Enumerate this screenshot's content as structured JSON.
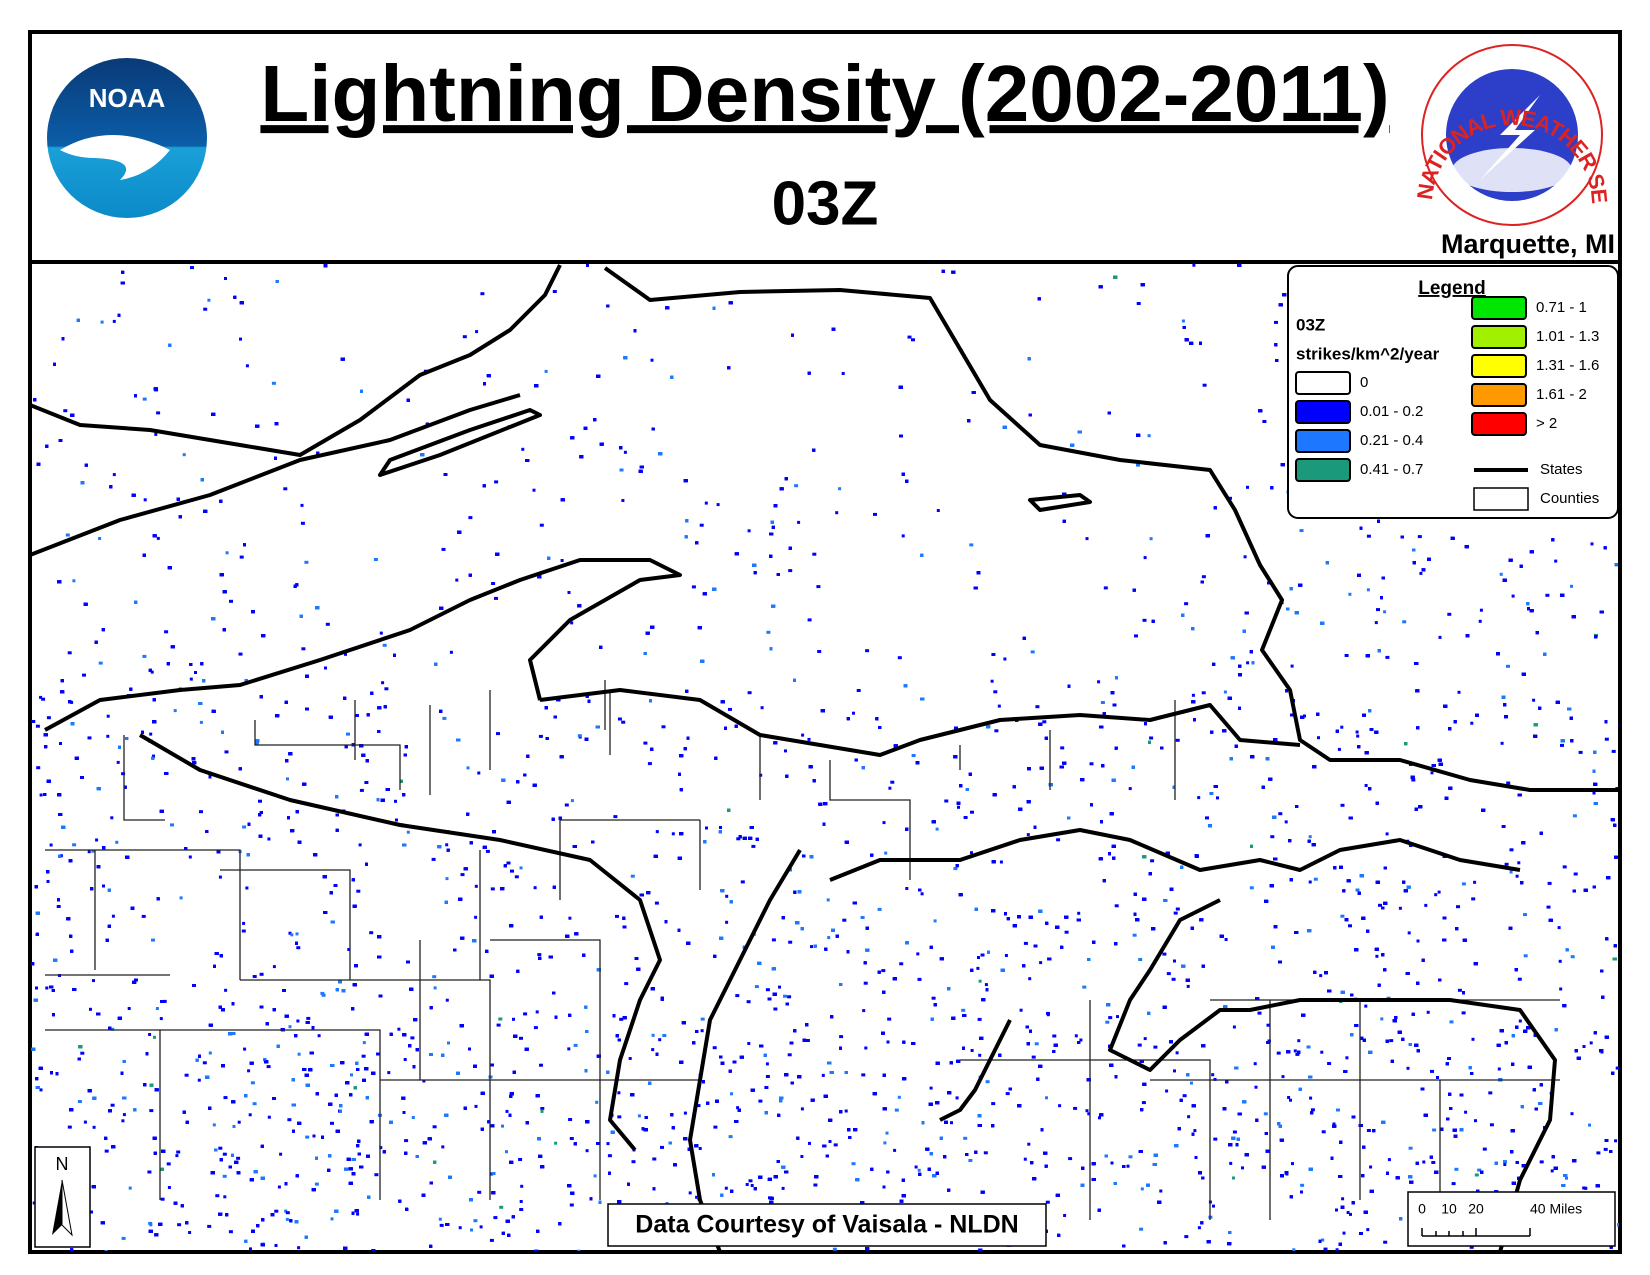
{
  "header": {
    "title": "Lightning Density (2002-2011)",
    "subtitle": "03Z",
    "office": "Marquette, MI"
  },
  "logos": {
    "noaa": "NOAA",
    "nws": "NATIONAL WEATHER SERVICE"
  },
  "legend": {
    "title": "Legend",
    "hour": "03Z",
    "units": "strikes/km^2/year",
    "classes": [
      {
        "label": "0",
        "color": "#ffffff"
      },
      {
        "label": "0.01 - 0.2",
        "color": "#0000ff"
      },
      {
        "label": "0.21 - 0.4",
        "color": "#1e78ff"
      },
      {
        "label": "0.41 - 0.7",
        "color": "#1a9a7a"
      },
      {
        "label": "0.71 - 1",
        "color": "#00e600"
      },
      {
        "label": "1.01 - 1.3",
        "color": "#a0f000"
      },
      {
        "label": "1.31 - 1.6",
        "color": "#ffff00"
      },
      {
        "label": "1.61 - 2",
        "color": "#ff9900"
      },
      {
        "label": "> 2",
        "color": "#ff0000"
      }
    ],
    "states": "States",
    "counties": "Counties"
  },
  "scale_bar": {
    "labels": [
      "0",
      "10",
      "20",
      "40 Miles"
    ]
  },
  "north_arrow": "N",
  "credit": "Data Courtesy of Vaisala - NLDN"
}
